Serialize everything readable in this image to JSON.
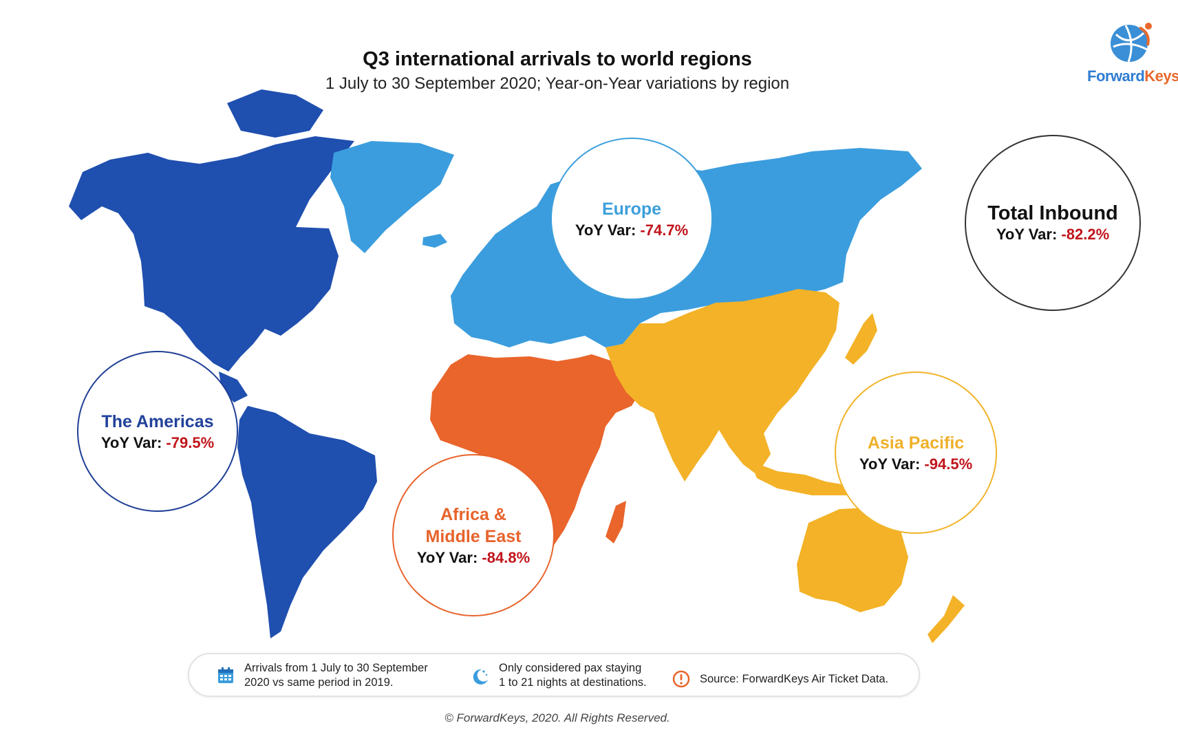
{
  "title": "Q3 international arrivals to world regions",
  "subtitle": "1 July to 30 September 2020; Year-on-Year variations by region",
  "logo": {
    "text_part1": "Forward",
    "text_part2": "Keys",
    "icon": "globe-icon"
  },
  "colors": {
    "americas": "#1f4faf",
    "europe": "#3b9ddd",
    "africa_middle_east": "#e9652b",
    "asia_pacific": "#f3b227",
    "negative_value": "#c0141a"
  },
  "regions": {
    "americas": {
      "name": "The Americas",
      "yoy_label": "YoY Var:",
      "yoy_value": "-79.5%"
    },
    "europe": {
      "name": "Europe",
      "yoy_label": "YoY Var:",
      "yoy_value": "-74.7%"
    },
    "africa": {
      "name_line1": "Africa &",
      "name_line2": "Middle East",
      "yoy_label": "YoY Var:",
      "yoy_value": "-84.8%"
    },
    "asia": {
      "name": "Asia Pacific",
      "yoy_label": "YoY Var:",
      "yoy_value": "-94.5%"
    },
    "total": {
      "name": "Total Inbound",
      "yoy_label": "YoY Var:",
      "yoy_value": "-82.2%"
    }
  },
  "legend": {
    "item1": {
      "icon": "calendar-icon",
      "line1": "Arrivals from 1 July to 30 September",
      "line2": "2020 vs same period in 2019."
    },
    "item2": {
      "icon": "moon-stars-icon",
      "line1": "Only considered pax staying",
      "line2": "1 to 21 nights at destinations."
    },
    "item3": {
      "icon": "exclamation-circle-icon",
      "line1": "Source: ForwardKeys Air Ticket Data."
    }
  },
  "copyright": "© ForwardKeys, 2020. All Rights Reserved."
}
